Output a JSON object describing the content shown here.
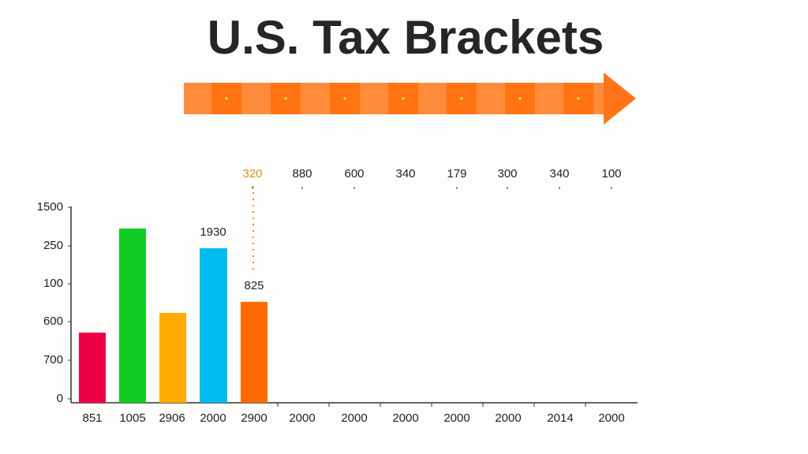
{
  "header": {
    "title": "U.S. Tax Brackets"
  },
  "top_labels": [
    "320",
    "880",
    "600",
    "340",
    "179",
    "300",
    "340",
    "100"
  ],
  "axis_labels": [
    "1500",
    "250",
    "100",
    "600",
    "700",
    "0"
  ],
  "bar_labels": [
    "1930",
    "825"
  ],
  "bottom_labels": [
    "851",
    "1005",
    "2906",
    "2000",
    "2900",
    "2000",
    "2000",
    "2000",
    "2000",
    "2000",
    "2014",
    "2000"
  ]
}
